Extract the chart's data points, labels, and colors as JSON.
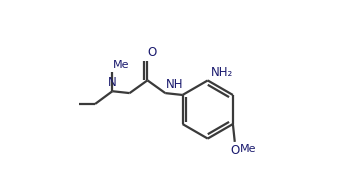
{
  "background": "#ffffff",
  "bond_color": "#3a3a3a",
  "text_color": "#1a1a6e",
  "bond_width": 1.6,
  "font_size": 8.5,
  "figsize": [
    3.46,
    1.89
  ],
  "dpi": 100,
  "xlim": [
    0.0,
    1.0
  ],
  "ylim": [
    0.0,
    1.0
  ]
}
